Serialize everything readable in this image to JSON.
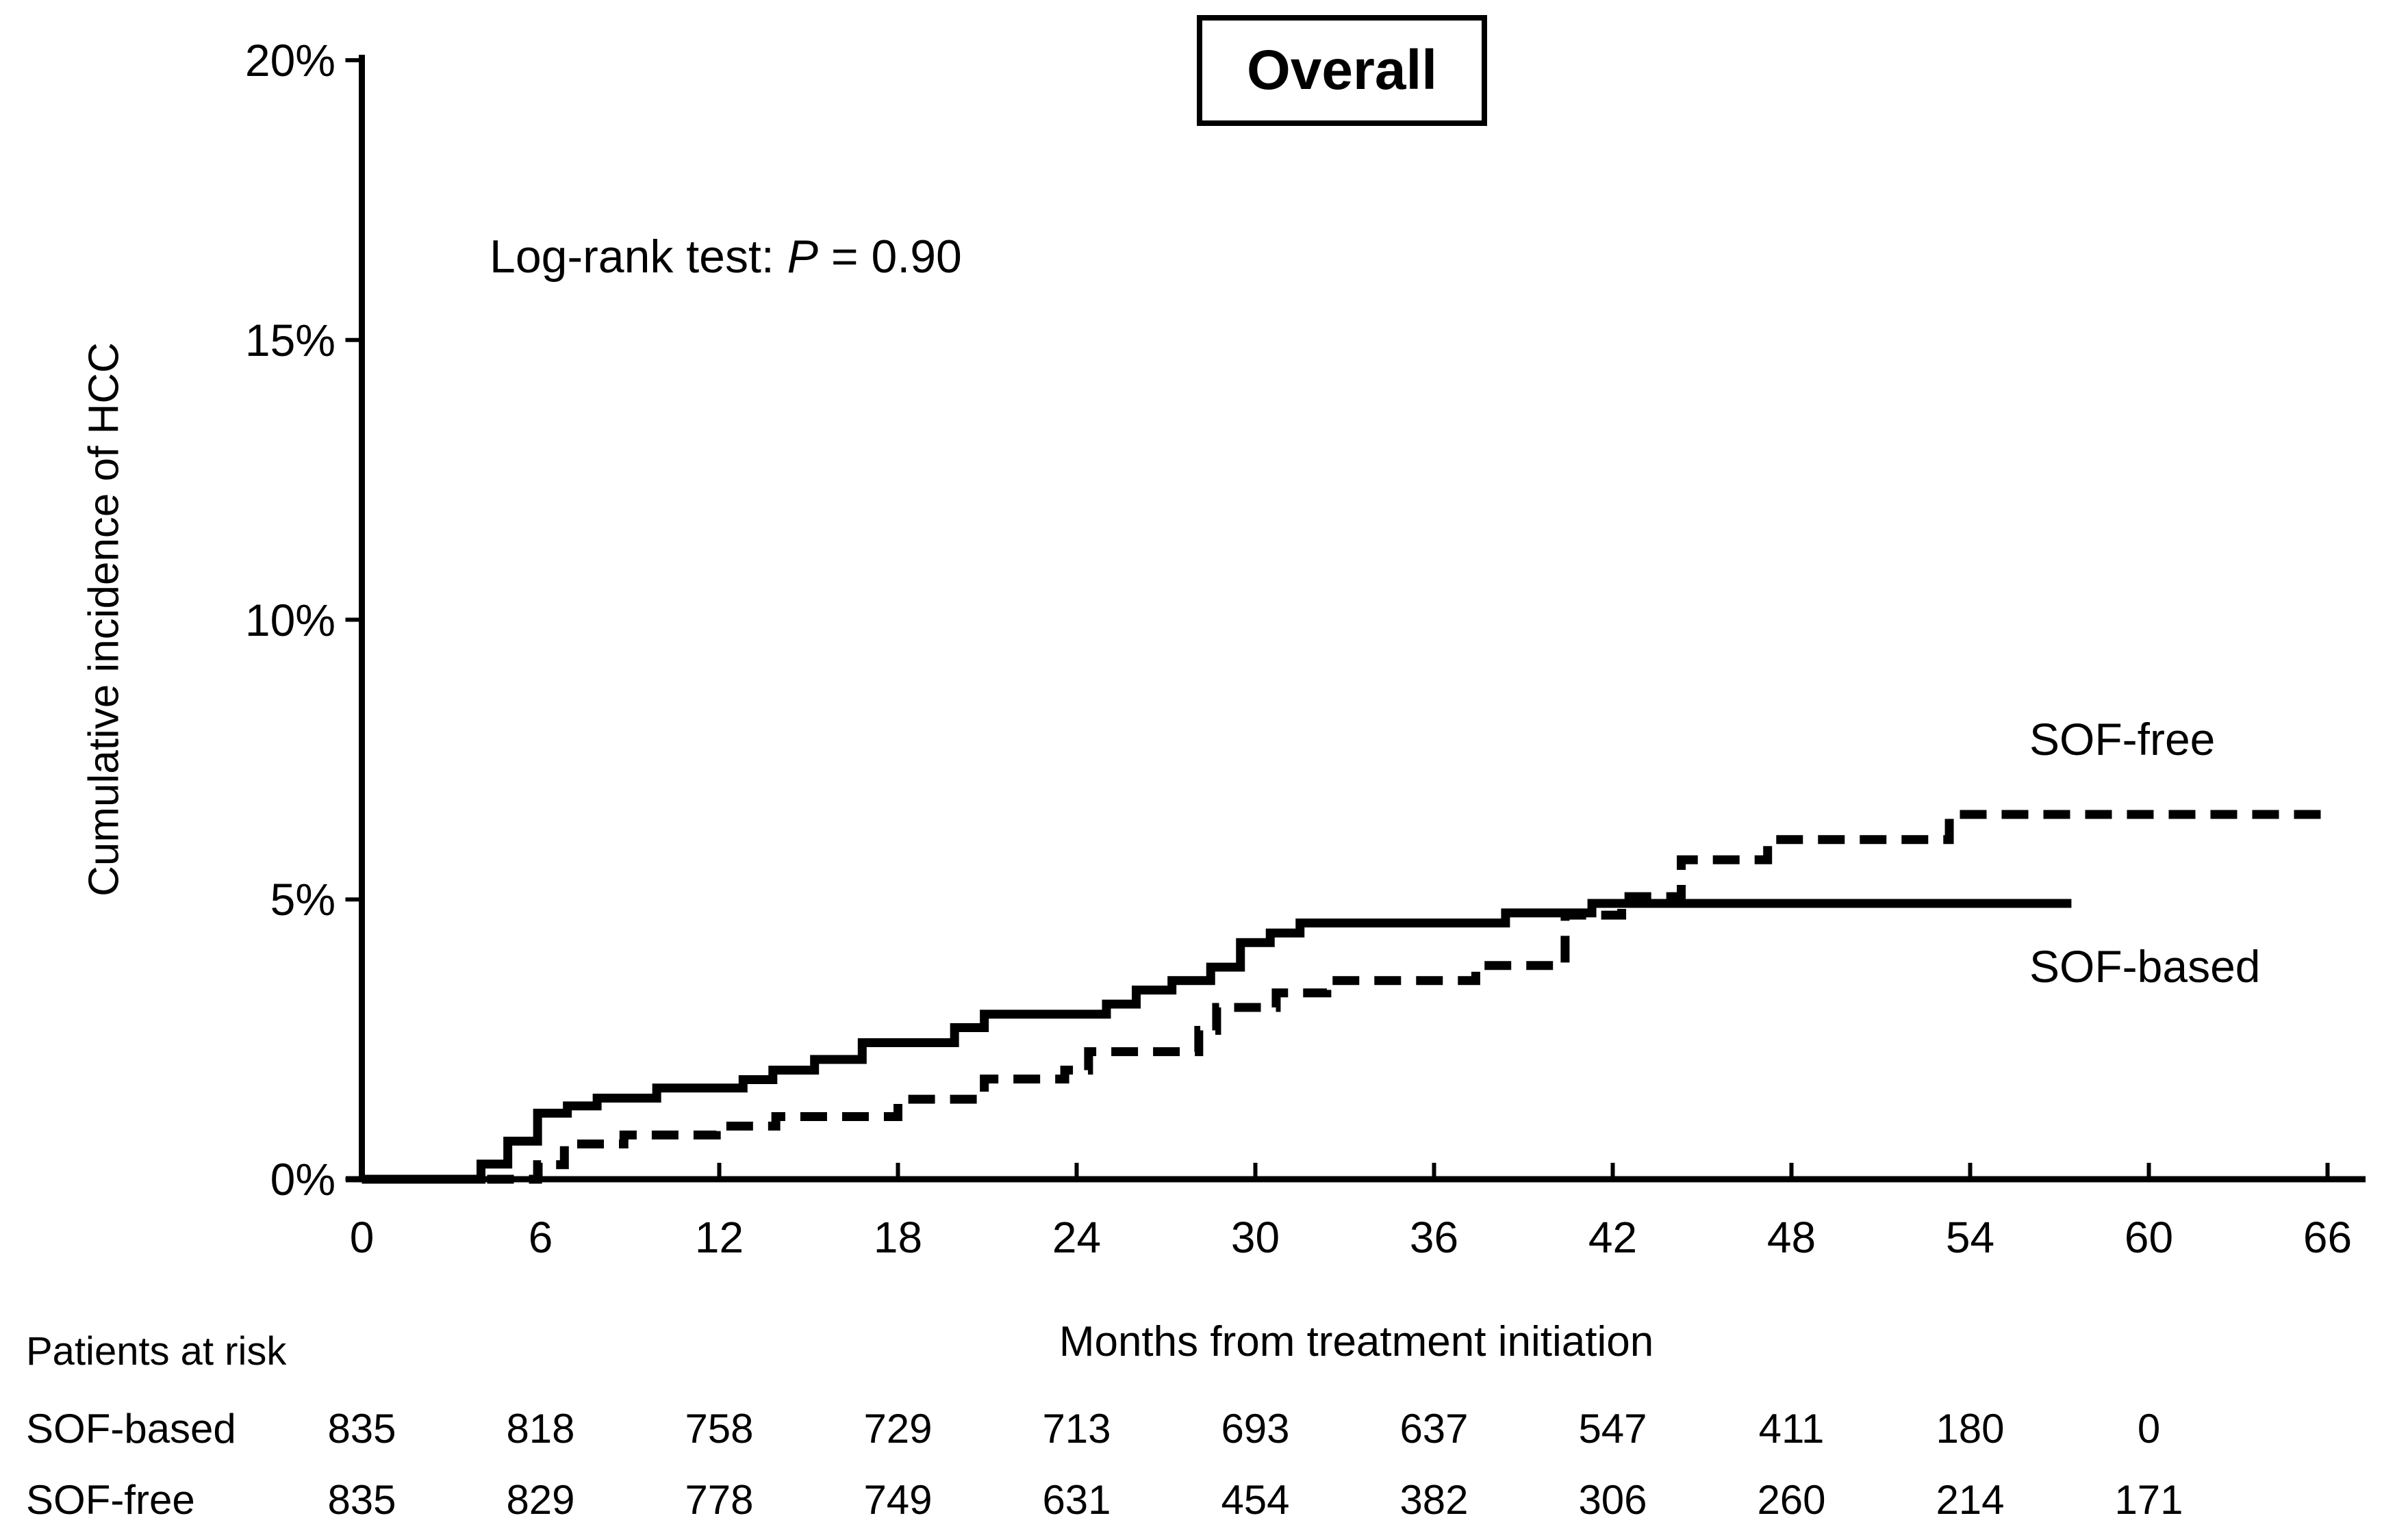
{
  "title_box": {
    "label": "Overall"
  },
  "annotation": {
    "prefix": "Log-rank test: ",
    "p_symbol": "P",
    "suffix": " = 0.90"
  },
  "y_axis": {
    "title": "Cumulative incidence of HCC",
    "tick_labels": [
      "20%",
      "15%",
      "10%",
      "5%",
      "0%"
    ]
  },
  "x_axis": {
    "title": "Months from treatment initiation",
    "tick_labels": [
      "0",
      "6",
      "12",
      "18",
      "24",
      "30",
      "36",
      "42",
      "48",
      "54",
      "60",
      "66"
    ]
  },
  "curve_labels": {
    "sof_free": "SOF-free",
    "sof_based": "SOF-based"
  },
  "risk_table": {
    "header": "Patients at risk",
    "rows": [
      {
        "label": "SOF-based",
        "counts": [
          "835",
          "818",
          "758",
          "729",
          "713",
          "693",
          "637",
          "547",
          "411",
          "180",
          "0"
        ]
      },
      {
        "label": "SOF-free",
        "counts": [
          "835",
          "829",
          "778",
          "749",
          "631",
          "454",
          "382",
          "306",
          "260",
          "214",
          "171"
        ]
      }
    ]
  },
  "colors": {
    "foreground": "#000000",
    "background": "#ffffff"
  },
  "chart_data": {
    "type": "line",
    "subtype": "kaplan-meier-step",
    "title": "Overall",
    "xlabel": "Months from treatment initiation",
    "ylabel": "Cumulative incidence of HCC",
    "xlim": [
      0,
      66
    ],
    "ylim": [
      0,
      20
    ],
    "x_ticks": [
      0,
      6,
      12,
      18,
      24,
      30,
      36,
      42,
      48,
      54,
      60,
      66
    ],
    "y_ticks": [
      0,
      5,
      10,
      15,
      20
    ],
    "y_unit": "%",
    "grid": false,
    "legend_position": "labels-at-line-end",
    "annotation": "Log-rank test: P = 0.90",
    "series": [
      {
        "name": "SOF-based",
        "style": "solid",
        "end_month": 57.4,
        "steps": [
          [
            0,
            0
          ],
          [
            4,
            0.27
          ],
          [
            4.9,
            0.68
          ],
          [
            5.9,
            1.18
          ],
          [
            6.9,
            1.31
          ],
          [
            7.9,
            1.45
          ],
          [
            9.9,
            1.63
          ],
          [
            12.8,
            1.78
          ],
          [
            13.8,
            1.95
          ],
          [
            15.2,
            2.14
          ],
          [
            16.8,
            2.44
          ],
          [
            19.9,
            2.71
          ],
          [
            20.9,
            2.95
          ],
          [
            25,
            3.13
          ],
          [
            26,
            3.38
          ],
          [
            27.2,
            3.55
          ],
          [
            28.5,
            3.79
          ],
          [
            29.5,
            4.23
          ],
          [
            30.5,
            4.4
          ],
          [
            31.5,
            4.58
          ],
          [
            38.4,
            4.76
          ],
          [
            41.3,
            4.93
          ]
        ]
      },
      {
        "name": "SOF-free",
        "style": "dashed",
        "end_month": 66,
        "steps": [
          [
            0,
            0
          ],
          [
            5.9,
            0.26
          ],
          [
            6.8,
            0.63
          ],
          [
            8.8,
            0.79
          ],
          [
            11.9,
            0.95
          ],
          [
            13.9,
            1.12
          ],
          [
            18,
            1.43
          ],
          [
            20.9,
            1.79
          ],
          [
            23.6,
            1.95
          ],
          [
            24.4,
            2.28
          ],
          [
            28.1,
            2.66
          ],
          [
            28.7,
            3.07
          ],
          [
            30.7,
            3.33
          ],
          [
            32.4,
            3.55
          ],
          [
            37.4,
            3.82
          ],
          [
            40.4,
            4.72
          ],
          [
            42.3,
            5.05
          ],
          [
            44.3,
            5.71
          ],
          [
            47.2,
            6.07
          ],
          [
            53.3,
            6.52
          ]
        ]
      }
    ]
  }
}
